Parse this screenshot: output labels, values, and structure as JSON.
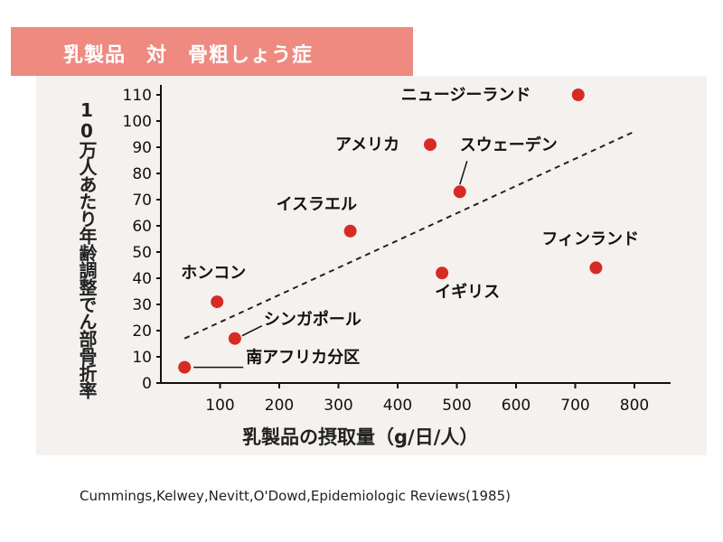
{
  "banner": {
    "title": "乳製品　対　骨粗しょう症"
  },
  "chart_data": {
    "type": "scatter",
    "title": "乳製品　対　骨粗しょう症",
    "xlabel": "乳製品の摂取量（g/日/人）",
    "ylabel": "10万人あたり年齢調整でん部骨折率",
    "xlim": [
      0,
      800
    ],
    "ylim": [
      0,
      115
    ],
    "x_ticks": [
      100,
      200,
      300,
      400,
      500,
      600,
      700,
      800
    ],
    "y_ticks": [
      0,
      10,
      20,
      30,
      40,
      50,
      60,
      70,
      80,
      90,
      100,
      110
    ],
    "points": [
      {
        "label": "南アフリカ分区",
        "x": 40,
        "y": 6
      },
      {
        "label": "ホンコン",
        "x": 95,
        "y": 31
      },
      {
        "label": "シンガポール",
        "x": 125,
        "y": 17
      },
      {
        "label": "イスラエル",
        "x": 320,
        "y": 58
      },
      {
        "label": "アメリカ",
        "x": 455,
        "y": 91
      },
      {
        "label": "イギリス",
        "x": 475,
        "y": 42
      },
      {
        "label": "スウェーデン",
        "x": 505,
        "y": 73
      },
      {
        "label": "ニュージーランド",
        "x": 705,
        "y": 110
      },
      {
        "label": "フィンランド",
        "x": 735,
        "y": 44
      }
    ],
    "trendline": {
      "style": "dashed",
      "from": [
        40,
        17
      ],
      "to": [
        800,
        96
      ]
    },
    "grid": false,
    "legend": "none",
    "point_color": "#d62b24"
  },
  "citation": "Cummings,Kelwey,Nevitt,O'Dowd,Epidemiologic Reviews(1985)"
}
